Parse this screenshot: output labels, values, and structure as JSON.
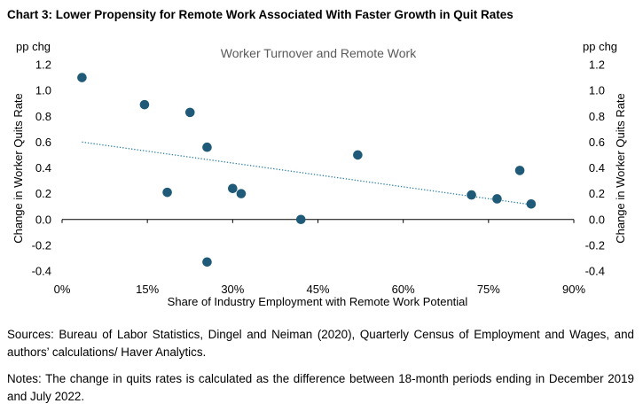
{
  "header": {
    "chart_title": "Chart 3: Lower Propensity for Remote Work Associated With Faster Growth in Quit Rates"
  },
  "chart_data": {
    "type": "scatter",
    "title": "Worker Turnover and Remote Work",
    "xlabel": "Share of Industry Employment with Remote Work Potential",
    "ylabel_left": "Change in Worker Quits Rate",
    "ylabel_right": "Change in Worker Quits Rate",
    "yunit_left": "pp chg",
    "yunit_right": "pp chg",
    "xlim": [
      0,
      90
    ],
    "ylim": [
      -0.4,
      1.2
    ],
    "x_ticks": [
      0,
      15,
      30,
      45,
      60,
      75,
      90
    ],
    "x_tick_labels": [
      "0%",
      "15%",
      "30%",
      "45%",
      "60%",
      "75%",
      "90%"
    ],
    "y_ticks": [
      -0.4,
      -0.2,
      0.0,
      0.2,
      0.4,
      0.6,
      0.8,
      1.0,
      1.2
    ],
    "y_tick_labels": [
      "-0.4",
      "-0.2",
      "0.0",
      "0.2",
      "0.4",
      "0.6",
      "0.8",
      "1.0",
      "1.2"
    ],
    "grid": false,
    "point_color": "#1f5a78",
    "trendline": {
      "style": "dotted",
      "color": "#2b7fa6",
      "x": [
        3.5,
        82.5
      ],
      "y": [
        0.6,
        0.115
      ]
    },
    "points": [
      {
        "x": 3.5,
        "y": 1.1
      },
      {
        "x": 14.5,
        "y": 0.89
      },
      {
        "x": 18.5,
        "y": 0.21
      },
      {
        "x": 22.5,
        "y": 0.83
      },
      {
        "x": 25.5,
        "y": 0.56
      },
      {
        "x": 25.5,
        "y": -0.33
      },
      {
        "x": 30.0,
        "y": 0.24
      },
      {
        "x": 31.5,
        "y": 0.2
      },
      {
        "x": 42.0,
        "y": 0.0
      },
      {
        "x": 52.0,
        "y": 0.5
      },
      {
        "x": 72.0,
        "y": 0.19
      },
      {
        "x": 76.5,
        "y": 0.16
      },
      {
        "x": 80.5,
        "y": 0.38
      },
      {
        "x": 82.5,
        "y": 0.12
      }
    ]
  },
  "footer": {
    "sources": "Sources: Bureau of Labor Statistics, Dingel and Neiman (2020), Quarterly Census of Employment and Wages, and authors’ calculations/ Haver Analytics.",
    "notes": "Notes: The change in quits rates is calculated as the difference between 18-month periods ending in December 2019 and July 2022."
  }
}
